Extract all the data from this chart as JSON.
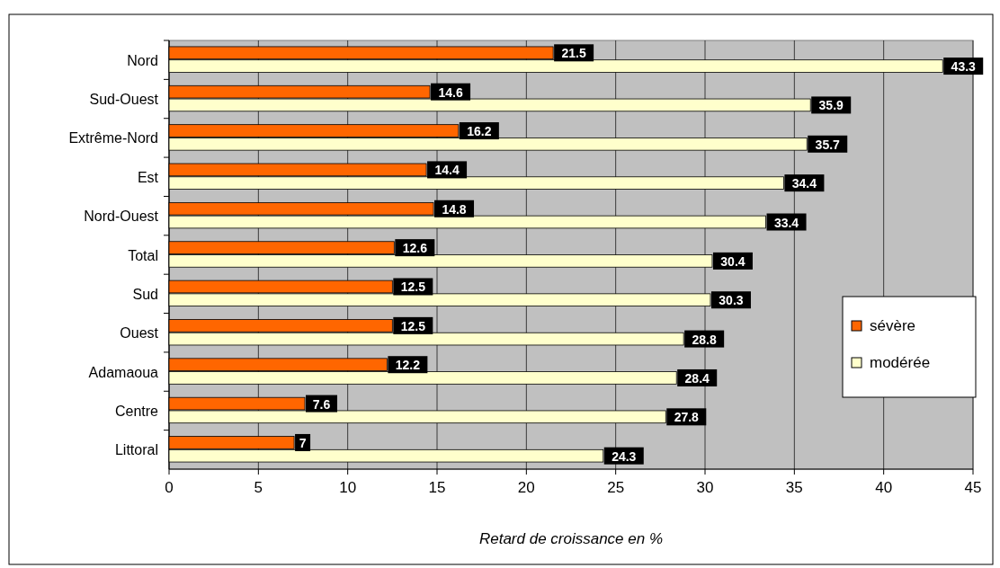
{
  "chart_data": {
    "type": "bar",
    "orientation": "horizontal",
    "xlabel": "Retard de croissance en %",
    "categories": [
      "Nord",
      "Sud-Ouest",
      "Extrême-Nord",
      "Est",
      "Nord-Ouest",
      "Total",
      "Sud",
      "Ouest",
      "Adamaoua",
      "Centre",
      "Littoral"
    ],
    "series": [
      {
        "name": "sévère",
        "color": "#ff6600",
        "values": [
          21.5,
          14.6,
          16.2,
          14.4,
          14.8,
          12.6,
          12.5,
          12.5,
          12.2,
          7.6,
          7
        ]
      },
      {
        "name": "modérée",
        "color": "#ffffcc",
        "values": [
          43.3,
          35.9,
          35.7,
          34.4,
          33.4,
          30.4,
          30.3,
          28.8,
          28.4,
          27.8,
          24.3
        ]
      }
    ],
    "xlim": [
      0,
      45
    ],
    "xticks": [
      0,
      5,
      10,
      15,
      20,
      25,
      30,
      35,
      40,
      45
    ],
    "grid": "x",
    "legend": "right",
    "data_labels": true
  }
}
